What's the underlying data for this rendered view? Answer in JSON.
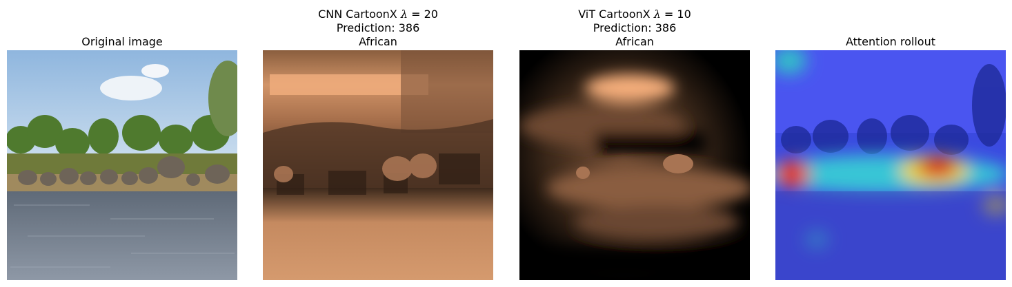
{
  "panels": [
    {
      "id": "original",
      "title_lines": [
        "Original image"
      ],
      "image": "photo of a herd of African elephants standing at the edge of a river with trees and blue sky"
    },
    {
      "id": "cnn",
      "title_prefix": "CNN CartoonX ",
      "lambda_symbol": "λ",
      "lambda_eq": " = 20",
      "title_lines": [
        "Prediction: 386",
        "African"
      ],
      "image": "copper-colormap CartoonX explanation highlighting the elephants"
    },
    {
      "id": "vit",
      "title_prefix": "ViT CartoonX ",
      "lambda_symbol": "λ",
      "lambda_eq": " = 10",
      "title_lines": [
        "Prediction: 386",
        "African"
      ],
      "image": "copper-colormap smooth CartoonX explanation on black background"
    },
    {
      "id": "rollout",
      "title_lines": [
        "Attention rollout"
      ],
      "image": "jet-colormap attention heatmap overlaid on the elephant photo"
    }
  ],
  "colors": {
    "copper_dark": "#000000",
    "copper_light": "#f7b07b",
    "jet_blue": "#2f3dff",
    "jet_red": "#d81a1a"
  }
}
